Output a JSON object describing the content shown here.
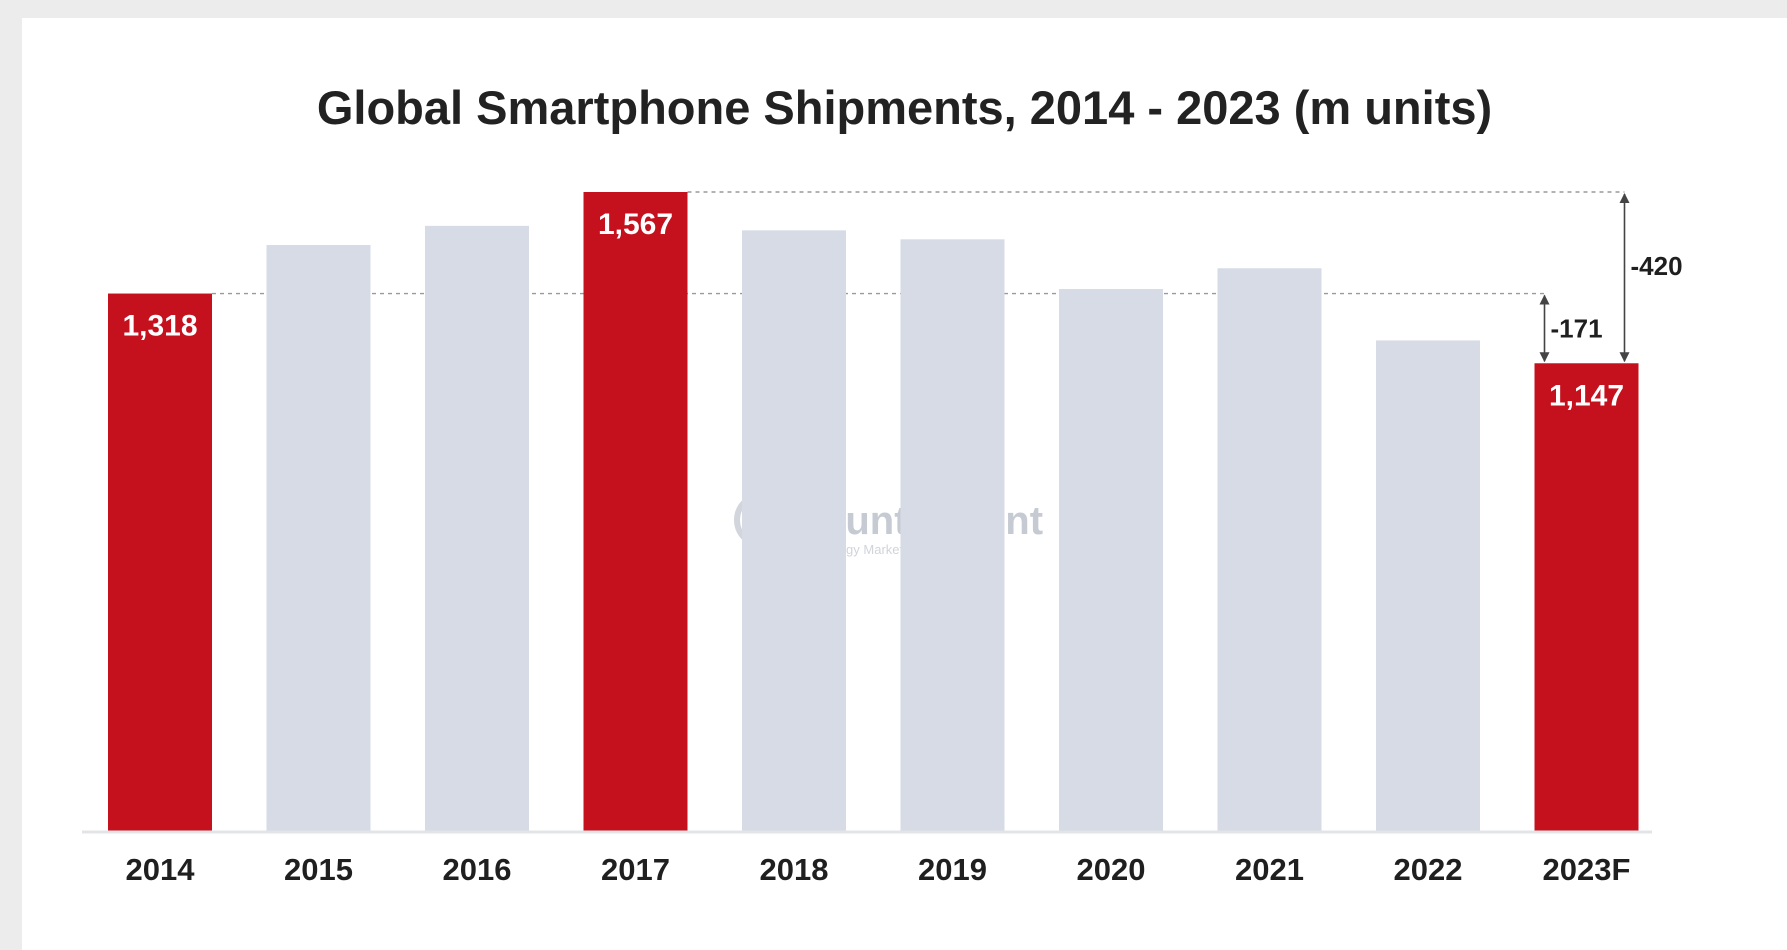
{
  "chart_data": {
    "type": "bar",
    "title": "Global Smartphone Shipments, 2014 - 2023 (m units)",
    "xlabel": "",
    "ylabel": "",
    "categories": [
      "2014",
      "2015",
      "2016",
      "2017",
      "2018",
      "2019",
      "2020",
      "2021",
      "2022",
      "2023F"
    ],
    "values": [
      1318,
      1437,
      1484,
      1567,
      1473,
      1451,
      1329,
      1380,
      1203,
      1147
    ],
    "data_labels": [
      "1,318",
      "",
      "",
      "1,567",
      "",
      "",
      "",
      "",
      "",
      "1,147"
    ],
    "highlighted": [
      true,
      false,
      false,
      true,
      false,
      false,
      false,
      false,
      false,
      true
    ],
    "ylim": [
      0,
      1567
    ],
    "grid": false,
    "annotations": [
      {
        "label": "-171",
        "from_category": "2014",
        "to_category": "2023F"
      },
      {
        "label": "-420",
        "from_category": "2017",
        "to_category": "2023F"
      }
    ],
    "colors": {
      "highlight": "#c5101e",
      "default": "#d6dbe5",
      "axis": "#e2e4e8",
      "guide": "#9a9a9a"
    }
  },
  "watermark": {
    "name": "Counterpoint",
    "tagline": "Technology Market Research",
    "icon": "counterpoint-logo-icon"
  }
}
